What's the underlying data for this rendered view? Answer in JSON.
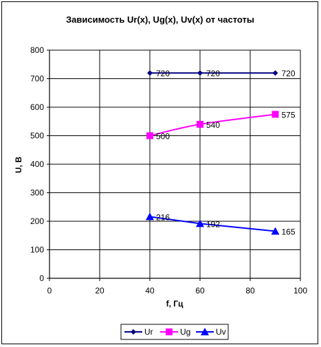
{
  "chart_data": {
    "type": "line",
    "title": "Зависимость Ur(x), Ug(x), Uv(x) от частоты",
    "xlabel": "f, Гц",
    "ylabel": "U, В",
    "xlim": [
      0,
      100
    ],
    "ylim": [
      0,
      800
    ],
    "xticks": [
      0,
      20,
      40,
      60,
      80,
      100
    ],
    "yticks": [
      0,
      100,
      200,
      300,
      400,
      500,
      600,
      700,
      800
    ],
    "grid": true,
    "legend_position": "bottom",
    "series": [
      {
        "name": "Ur",
        "color": "#000080",
        "marker": "diamond",
        "smooth": false,
        "points": [
          {
            "x": 40,
            "y": 720
          },
          {
            "x": 60,
            "y": 720
          },
          {
            "x": 90,
            "y": 720
          }
        ]
      },
      {
        "name": "Ug",
        "color": "#FF00FF",
        "marker": "square",
        "smooth": true,
        "points": [
          {
            "x": 40,
            "y": 500
          },
          {
            "x": 60,
            "y": 540
          },
          {
            "x": 90,
            "y": 575
          }
        ]
      },
      {
        "name": "Uv",
        "color": "#0000FF",
        "marker": "triangle",
        "smooth": false,
        "points": [
          {
            "x": 40,
            "y": 216
          },
          {
            "x": 60,
            "y": 192
          },
          {
            "x": 90,
            "y": 165
          }
        ]
      }
    ]
  }
}
